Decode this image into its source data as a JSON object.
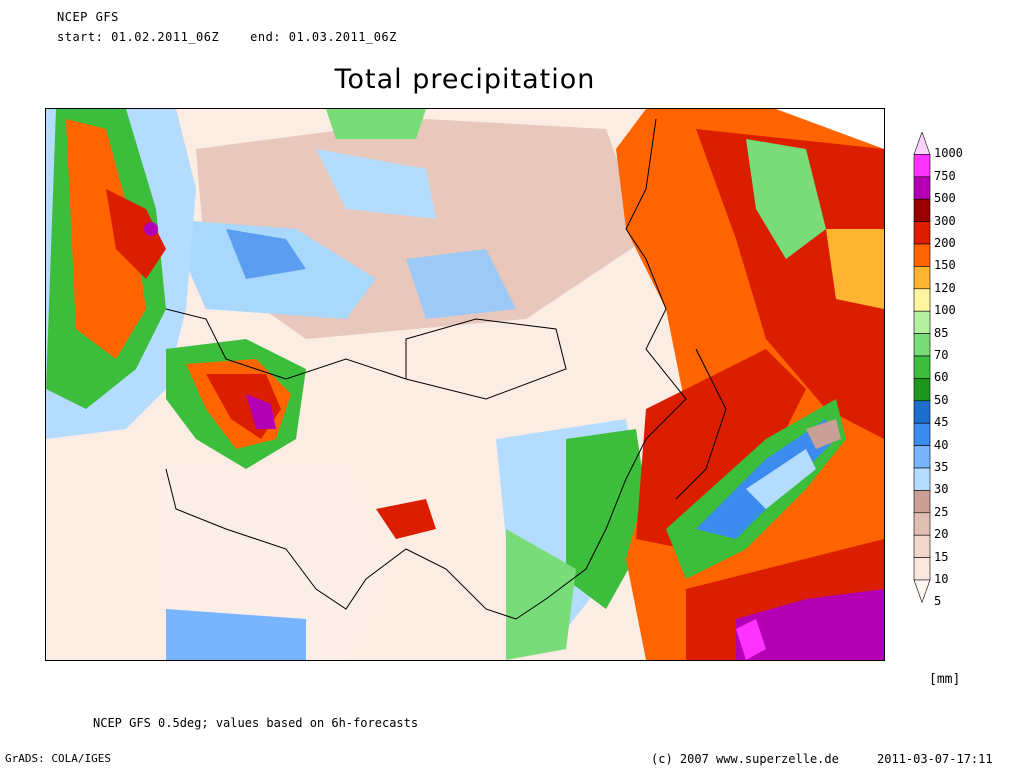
{
  "header": {
    "model": "NCEP GFS",
    "period": "start: 01.02.2011_06Z    end: 01.03.2011_06Z"
  },
  "title": "Total precipitation",
  "legend": {
    "unit": "[mm]",
    "levels": [
      {
        "label": "1000",
        "color": "#ffd2ff"
      },
      {
        "label": "750",
        "color": "#ff32ff"
      },
      {
        "label": "500",
        "color": "#b400b4"
      },
      {
        "label": "300",
        "color": "#960000"
      },
      {
        "label": "200",
        "color": "#dc1e00"
      },
      {
        "label": "150",
        "color": "#ff6400"
      },
      {
        "label": "120",
        "color": "#ffb432"
      },
      {
        "label": "100",
        "color": "#fff5a0"
      },
      {
        "label": "85",
        "color": "#b4f0a0"
      },
      {
        "label": "70",
        "color": "#78dc78"
      },
      {
        "label": "60",
        "color": "#3cbe3c"
      },
      {
        "label": "50",
        "color": "#1e961e"
      },
      {
        "label": "45",
        "color": "#1e6ecd"
      },
      {
        "label": "40",
        "color": "#3c8cf0"
      },
      {
        "label": "35",
        "color": "#78b4ff"
      },
      {
        "label": "30",
        "color": "#b4dcff"
      },
      {
        "label": "25",
        "color": "#c8a096"
      },
      {
        "label": "20",
        "color": "#e1beb4"
      },
      {
        "label": "15",
        "color": "#f0d7cd"
      },
      {
        "label": "10",
        "color": "#fae8e0"
      },
      {
        "label": "5",
        "color": "#fff6f2"
      }
    ]
  },
  "footer": {
    "note": "NCEP GFS 0.5deg; values based on 6h-forecasts",
    "grads": "GrADS: COLA/IGES",
    "copyright": "(c) 2007 www.superzelle.de",
    "timestamp": "2011-03-07-17:11"
  }
}
